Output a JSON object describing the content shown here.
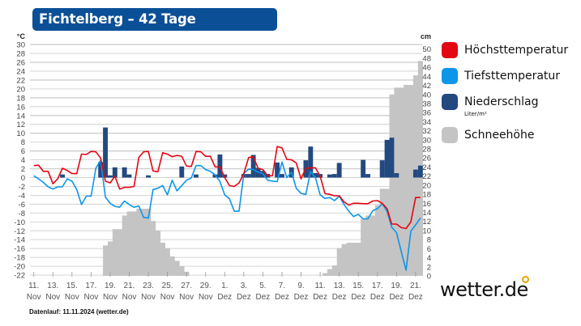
{
  "title": "Fichtelberg – 42 Tage Wettertrend",
  "footer": "Datenlauf: 11.11.2024 (wetter.de)",
  "logo": "wetter.de",
  "colors": {
    "title_bg": "#0b4f96",
    "high": "#e30613",
    "low": "#0d96e8",
    "precip": "#234a80",
    "snow": "#c4c4c4",
    "grid": "#cfcfcf"
  },
  "legend": [
    {
      "label": "Höchsttemperatur",
      "color": "#e30613"
    },
    {
      "label": "Tiefsttemperatur",
      "color": "#0d96e8"
    },
    {
      "label": "Niederschlag",
      "color": "#234a80",
      "sublabel": "Liter/m²"
    },
    {
      "label": "Schneehöhe",
      "color": "#c4c4c4"
    }
  ],
  "chart_data": {
    "type": "line",
    "grid": true,
    "legend_position": "right",
    "y_left": {
      "unit": "°C",
      "range": [
        -22,
        30
      ],
      "ticks": [
        "30",
        "28",
        "26",
        "24",
        "22",
        "20",
        "18",
        "16",
        "14",
        "12",
        "10",
        "8",
        "6",
        "4",
        "2",
        "0",
        "-2",
        "-4",
        "-6",
        "-8",
        "-10",
        "-12",
        "-14",
        "-16",
        "-18",
        "-20",
        "-22"
      ]
    },
    "y_right": {
      "unit": "cm",
      "range": [
        0,
        50
      ],
      "ticks": [
        "50",
        "48",
        "46",
        "44",
        "42",
        "40",
        "38",
        "36",
        "34",
        "32",
        "30",
        "28",
        "26",
        "24",
        "22",
        "20",
        "18",
        "16",
        "14",
        "12",
        "10",
        "8",
        "6",
        "4",
        "2",
        "0"
      ]
    },
    "x_ticks": [
      {
        "day": "11.",
        "month": "Nov",
        "date": "2024-11-11"
      },
      {
        "day": "13.",
        "month": "Nov",
        "date": "2024-11-13"
      },
      {
        "day": "15.",
        "month": "Nov",
        "date": "2024-11-15"
      },
      {
        "day": "17.",
        "month": "Nov",
        "date": "2024-11-17"
      },
      {
        "day": "19.",
        "month": "Nov",
        "date": "2024-11-19"
      },
      {
        "day": "21.",
        "month": "Nov",
        "date": "2024-11-21"
      },
      {
        "day": "23.",
        "month": "Nov",
        "date": "2024-11-23"
      },
      {
        "day": "25.",
        "month": "Nov",
        "date": "2024-11-25"
      },
      {
        "day": "27.",
        "month": "Nov",
        "date": "2024-11-27"
      },
      {
        "day": "29.",
        "month": "Nov",
        "date": "2024-11-29"
      },
      {
        "day": "1.",
        "month": "Dez",
        "date": "2024-12-01"
      },
      {
        "day": "3.",
        "month": "Dez",
        "date": "2024-12-03"
      },
      {
        "day": "5.",
        "month": "Dez",
        "date": "2024-12-05"
      },
      {
        "day": "7.",
        "month": "Dez",
        "date": "2024-12-07"
      },
      {
        "day": "9.",
        "month": "Dez",
        "date": "2024-12-09"
      },
      {
        "day": "11.",
        "month": "Dez",
        "date": "2024-12-11"
      },
      {
        "day": "13.",
        "month": "Dez",
        "date": "2024-12-13"
      },
      {
        "day": "15.",
        "month": "Dez",
        "date": "2024-12-15"
      },
      {
        "day": "17.",
        "month": "Dez",
        "date": "2024-12-17"
      },
      {
        "day": "19.",
        "month": "Dez",
        "date": "2024-12-19"
      },
      {
        "day": "21.",
        "month": "Dez",
        "date": "2024-12-21"
      }
    ],
    "x": [
      "2024-11-11T00:00",
      "2024-11-11T12:00",
      "2024-11-12T00:00",
      "2024-11-12T12:00",
      "2024-11-13T00:00",
      "2024-11-13T12:00",
      "2024-11-14T00:00",
      "2024-11-14T12:00",
      "2024-11-15T00:00",
      "2024-11-15T12:00",
      "2024-11-16T00:00",
      "2024-11-16T12:00",
      "2024-11-17T00:00",
      "2024-11-17T12:00",
      "2024-11-18T00:00",
      "2024-11-18T12:00",
      "2024-11-19T00:00",
      "2024-11-19T12:00",
      "2024-11-20T00:00",
      "2024-11-20T12:00",
      "2024-11-21T00:00",
      "2024-11-21T12:00",
      "2024-11-22T00:00",
      "2024-11-22T12:00",
      "2024-11-23T00:00",
      "2024-11-23T12:00",
      "2024-11-24T00:00",
      "2024-11-24T12:00",
      "2024-11-25T00:00",
      "2024-11-25T12:00",
      "2024-11-26T00:00",
      "2024-11-26T12:00",
      "2024-11-27T00:00",
      "2024-11-27T12:00",
      "2024-11-28T00:00",
      "2024-11-28T12:00",
      "2024-11-29T00:00",
      "2024-11-29T12:00",
      "2024-11-30T00:00",
      "2024-11-30T12:00",
      "2024-12-01T00:00",
      "2024-12-01T12:00",
      "2024-12-02T00:00",
      "2024-12-02T12:00",
      "2024-12-03T00:00",
      "2024-12-03T12:00",
      "2024-12-04T00:00",
      "2024-12-04T12:00",
      "2024-12-05T00:00",
      "2024-12-05T12:00",
      "2024-12-06T00:00",
      "2024-12-06T12:00",
      "2024-12-07T00:00",
      "2024-12-07T12:00",
      "2024-12-08T00:00",
      "2024-12-08T12:00",
      "2024-12-09T00:00",
      "2024-12-09T12:00",
      "2024-12-10T00:00",
      "2024-12-10T12:00",
      "2024-12-11T00:00",
      "2024-12-11T12:00",
      "2024-12-12T00:00",
      "2024-12-12T12:00",
      "2024-12-13T00:00",
      "2024-12-13T12:00",
      "2024-12-14T00:00",
      "2024-12-14T12:00",
      "2024-12-15T00:00",
      "2024-12-15T12:00",
      "2024-12-16T00:00",
      "2024-12-16T12:00",
      "2024-12-17T00:00",
      "2024-12-17T12:00",
      "2024-12-18T00:00",
      "2024-12-18T12:00",
      "2024-12-19T00:00",
      "2024-12-19T12:00",
      "2024-12-20T00:00",
      "2024-12-20T12:00",
      "2024-12-21T00:00",
      "2024-12-21T12:00"
    ],
    "series": [
      {
        "name": "Höchsttemperatur",
        "axis": "left",
        "type": "line",
        "color": "#e30613",
        "values": [
          2.7,
          2.8,
          1.4,
          1.4,
          -1.4,
          -0.3,
          2.1,
          1.6,
          0.9,
          0.9,
          5.3,
          5.2,
          5.9,
          5.8,
          4.4,
          -0.8,
          -1.2,
          0.3,
          -2.6,
          -2.2,
          -2.2,
          -2.0,
          4.5,
          5.8,
          5.9,
          1.5,
          1.3,
          5.6,
          5.3,
          4.7,
          5.0,
          4.8,
          2.6,
          2.5,
          5.9,
          5.8,
          4.8,
          4.8,
          2.4,
          2.4,
          0.0,
          -1.8,
          -2.0,
          -1.2,
          0.9,
          4.5,
          4.7,
          2.1,
          1.8,
          0.4,
          0.4,
          7.0,
          6.7,
          4.1,
          4.0,
          3.3,
          -0.3,
          2.1,
          2.2,
          2.2,
          0.3,
          -3.6,
          -3.8,
          -4.1,
          -4.1,
          -5.5,
          -6.2,
          -5.8,
          -5.8,
          -5.9,
          -5.9,
          -5.3,
          -5.2,
          -5.8,
          -7.0,
          -10.5,
          -10.5,
          -11.3,
          -11.5,
          -10.0,
          -4.5,
          -4.5
        ]
      },
      {
        "name": "Tiefsttemperatur",
        "axis": "left",
        "type": "line",
        "color": "#0d96e8",
        "values": [
          0.4,
          -0.3,
          -1.1,
          -2.1,
          -2.6,
          -2.1,
          -2.1,
          -0.3,
          -0.8,
          -2.7,
          -6.1,
          -4.2,
          -4.2,
          2.1,
          3.9,
          -4.4,
          -5.8,
          -6.5,
          -6.7,
          -5.3,
          -6.1,
          -6.7,
          -6.4,
          -9.0,
          -9.1,
          -2.7,
          -2.4,
          -1.8,
          -3.9,
          -0.6,
          -3.0,
          -1.8,
          -0.6,
          -0.1,
          2.7,
          2.7,
          1.8,
          1.4,
          0.6,
          -0.9,
          -3.9,
          -4.8,
          -7.6,
          -7.6,
          0.9,
          1.9,
          1.8,
          1.2,
          0.9,
          -0.6,
          -0.8,
          -0.9,
          3.5,
          0.0,
          1.2,
          -2.4,
          -3.6,
          -3.8,
          1.4,
          0.0,
          -3.9,
          -4.7,
          -4.5,
          -5.2,
          -4.2,
          -6.1,
          -7.6,
          -8.8,
          -8.3,
          -9.3,
          -9.3,
          -7.5,
          -7.0,
          -5.9,
          -7.6,
          -11.2,
          -12.4,
          -16.7,
          -20.9,
          -12.1,
          -10.7,
          -9.1
        ]
      },
      {
        "name": "Niederschlag",
        "axis": "left",
        "type": "bar",
        "color": "#234a80",
        "values": [
          0,
          0,
          0,
          0,
          0,
          0,
          0.7,
          0,
          0,
          0,
          0,
          0,
          0,
          0,
          3.5,
          11.3,
          0.5,
          2.3,
          0,
          2.3,
          0.7,
          0,
          0,
          0,
          0.5,
          0,
          0,
          0,
          0,
          0,
          0,
          2.5,
          0,
          0,
          0.7,
          0,
          0,
          0,
          0.7,
          5.2,
          0.7,
          0,
          0,
          0,
          0.8,
          0.8,
          5.1,
          2.2,
          1.5,
          0.8,
          0,
          3.4,
          0.8,
          0,
          2.3,
          0,
          0,
          3.9,
          7.0,
          1.0,
          0.8,
          0,
          0.7,
          0.8,
          3.3,
          0,
          0,
          0,
          0,
          4.0,
          0.8,
          0,
          0,
          3.9,
          8.5,
          9.0,
          1.0,
          0,
          0,
          0,
          1.8,
          2.7
        ]
      },
      {
        "name": "Schneehöhe",
        "axis": "right",
        "type": "area",
        "color": "#c4c4c4",
        "values": [
          0,
          0,
          0,
          0,
          0,
          0,
          0,
          0,
          0,
          0,
          0,
          0,
          0,
          0,
          0,
          6.7,
          7.6,
          10.3,
          10.3,
          13.3,
          14.2,
          14.2,
          14.8,
          14.8,
          14.8,
          12.1,
          10.0,
          7.3,
          6.1,
          4.3,
          3.3,
          2.1,
          0.9,
          0,
          0,
          0,
          0,
          0,
          0,
          0,
          0,
          0,
          0,
          0,
          0,
          0,
          0,
          0,
          0,
          0,
          0,
          0,
          0,
          0,
          0,
          0,
          0,
          0,
          0,
          0,
          0,
          0.6,
          1.5,
          2.3,
          6.1,
          7.0,
          7.3,
          7.3,
          7.3,
          12.5,
          13.3,
          13.3,
          15.6,
          19.2,
          19.2,
          40,
          41.5,
          41.5,
          42.1,
          42.1,
          44.2,
          47.4
        ]
      }
    ]
  }
}
